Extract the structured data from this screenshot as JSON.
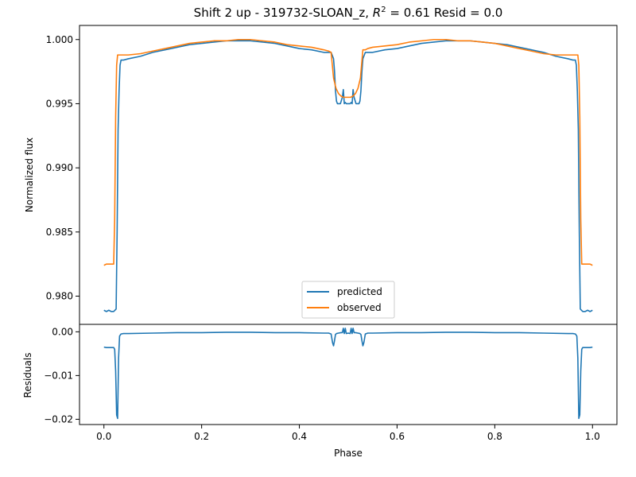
{
  "title_prefix": "Shift 2 up - 319732-SLOAN_z, ",
  "title_r2_symbol": "R",
  "title_r2_sup": "2",
  "title_suffix": " = 0.61 Resid = 0.0",
  "colors": {
    "predicted": "#1f77b4",
    "observed": "#ff7f0e",
    "axes": "#000000",
    "background": "#ffffff"
  },
  "chart_data": [
    {
      "type": "line",
      "panel": "top",
      "title": "Shift 2 up - 319732-SLOAN_z, R^2 = 0.61 Resid = 0.0",
      "xlabel": "",
      "ylabel": "Normalized flux",
      "xlim": [
        -0.05,
        1.05
      ],
      "ylim": [
        0.9778,
        1.0011
      ],
      "yticks": [
        0.98,
        0.985,
        0.99,
        0.995,
        1.0
      ],
      "yticklabels": [
        "0.980",
        "0.985",
        "0.990",
        "0.995",
        "1.000"
      ],
      "grid": false,
      "legend": {
        "position": "lower center",
        "entries": [
          "predicted",
          "observed"
        ]
      },
      "series": [
        {
          "name": "predicted",
          "color": "#1f77b4",
          "x": [
            0.0,
            0.005,
            0.01,
            0.015,
            0.02,
            0.025,
            0.027,
            0.029,
            0.031,
            0.033,
            0.035,
            0.04,
            0.05,
            0.075,
            0.1,
            0.125,
            0.15,
            0.175,
            0.2,
            0.225,
            0.25,
            0.275,
            0.3,
            0.325,
            0.35,
            0.375,
            0.4,
            0.425,
            0.45,
            0.46,
            0.465,
            0.47,
            0.472,
            0.474,
            0.476,
            0.478,
            0.48,
            0.484,
            0.488,
            0.49,
            0.492,
            0.494,
            0.496,
            0.5,
            0.504,
            0.506,
            0.508,
            0.51,
            0.512,
            0.516,
            0.52,
            0.522,
            0.524,
            0.526,
            0.528,
            0.53,
            0.535,
            0.54,
            0.55,
            0.575,
            0.6,
            0.625,
            0.65,
            0.675,
            0.7,
            0.725,
            0.75,
            0.775,
            0.8,
            0.825,
            0.85,
            0.875,
            0.9,
            0.925,
            0.95,
            0.96,
            0.965,
            0.967,
            0.969,
            0.971,
            0.973,
            0.975,
            0.98,
            0.985,
            0.99,
            0.995,
            1.0
          ],
          "y": [
            0.9789,
            0.9788,
            0.9789,
            0.9788,
            0.9788,
            0.979,
            0.985,
            0.993,
            0.996,
            0.998,
            0.9984,
            0.9984,
            0.9985,
            0.9987,
            0.999,
            0.9992,
            0.9994,
            0.9996,
            0.9997,
            0.9998,
            0.9999,
            0.9999,
            0.9999,
            0.9998,
            0.9997,
            0.9995,
            0.9993,
            0.9992,
            0.999,
            0.999,
            0.999,
            0.9985,
            0.9975,
            0.996,
            0.9952,
            0.995,
            0.995,
            0.995,
            0.9955,
            0.9961,
            0.995,
            0.9951,
            0.995,
            0.995,
            0.995,
            0.9951,
            0.995,
            0.9961,
            0.9955,
            0.995,
            0.995,
            0.995,
            0.9952,
            0.996,
            0.9975,
            0.9985,
            0.999,
            0.999,
            0.999,
            0.9992,
            0.9993,
            0.9995,
            0.9997,
            0.9998,
            0.9999,
            0.9999,
            0.9999,
            0.9998,
            0.9997,
            0.9996,
            0.9994,
            0.9992,
            0.999,
            0.9987,
            0.9985,
            0.9984,
            0.9984,
            0.998,
            0.996,
            0.993,
            0.985,
            0.979,
            0.9788,
            0.9788,
            0.9789,
            0.9788,
            0.9789
          ]
        },
        {
          "name": "observed",
          "color": "#ff7f0e",
          "x": [
            0.0,
            0.005,
            0.01,
            0.015,
            0.02,
            0.022,
            0.024,
            0.026,
            0.028,
            0.03,
            0.035,
            0.05,
            0.075,
            0.1,
            0.125,
            0.15,
            0.175,
            0.2,
            0.225,
            0.25,
            0.275,
            0.3,
            0.325,
            0.35,
            0.375,
            0.4,
            0.425,
            0.45,
            0.46,
            0.465,
            0.47,
            0.475,
            0.48,
            0.485,
            0.49,
            0.495,
            0.5,
            0.505,
            0.51,
            0.515,
            0.52,
            0.525,
            0.53,
            0.535,
            0.54,
            0.55,
            0.575,
            0.6,
            0.625,
            0.65,
            0.675,
            0.7,
            0.725,
            0.75,
            0.775,
            0.8,
            0.825,
            0.85,
            0.875,
            0.9,
            0.925,
            0.95,
            0.965,
            0.97,
            0.972,
            0.974,
            0.976,
            0.978,
            0.98,
            0.985,
            0.99,
            0.995,
            1.0
          ],
          "y": [
            0.9824,
            0.9825,
            0.9825,
            0.9825,
            0.9825,
            0.986,
            0.994,
            0.998,
            0.9988,
            0.9988,
            0.9988,
            0.9988,
            0.9989,
            0.9991,
            0.9993,
            0.9995,
            0.9997,
            0.9998,
            0.9999,
            0.9999,
            1.0,
            1.0,
            0.9999,
            0.9998,
            0.9996,
            0.9995,
            0.9994,
            0.9992,
            0.9991,
            0.999,
            0.997,
            0.9962,
            0.9958,
            0.9956,
            0.9955,
            0.9955,
            0.9955,
            0.9955,
            0.9956,
            0.9958,
            0.9962,
            0.997,
            0.9992,
            0.9992,
            0.9993,
            0.9994,
            0.9995,
            0.9996,
            0.9998,
            0.9999,
            1.0,
            1.0,
            0.9999,
            0.9999,
            0.9998,
            0.9997,
            0.9995,
            0.9993,
            0.9991,
            0.9989,
            0.9988,
            0.9988,
            0.9988,
            0.9988,
            0.998,
            0.994,
            0.986,
            0.9825,
            0.9825,
            0.9825,
            0.9825,
            0.9825,
            0.9824
          ]
        }
      ]
    },
    {
      "type": "line",
      "panel": "bottom",
      "title": "",
      "xlabel": "Phase",
      "ylabel": "Residuals",
      "xlim": [
        -0.05,
        1.05
      ],
      "ylim": [
        -0.0212,
        0.0017
      ],
      "xticks": [
        0.0,
        0.2,
        0.4,
        0.6,
        0.8,
        1.0
      ],
      "xticklabels": [
        "0.0",
        "0.2",
        "0.4",
        "0.6",
        "0.8",
        "1.0"
      ],
      "yticks": [
        -0.02,
        -0.01,
        0.0
      ],
      "yticklabels": [
        "−0.02",
        "−0.01",
        "0.00"
      ],
      "grid": false,
      "series": [
        {
          "name": "",
          "color": "#1f77b4",
          "x": [
            0.0,
            0.005,
            0.01,
            0.015,
            0.02,
            0.022,
            0.024,
            0.026,
            0.028,
            0.03,
            0.032,
            0.035,
            0.04,
            0.05,
            0.1,
            0.15,
            0.2,
            0.25,
            0.3,
            0.35,
            0.4,
            0.45,
            0.46,
            0.465,
            0.468,
            0.47,
            0.472,
            0.474,
            0.476,
            0.48,
            0.485,
            0.488,
            0.49,
            0.492,
            0.494,
            0.496,
            0.5,
            0.504,
            0.506,
            0.508,
            0.51,
            0.512,
            0.515,
            0.52,
            0.524,
            0.526,
            0.528,
            0.53,
            0.532,
            0.535,
            0.54,
            0.55,
            0.6,
            0.65,
            0.7,
            0.75,
            0.8,
            0.85,
            0.9,
            0.95,
            0.96,
            0.965,
            0.968,
            0.97,
            0.972,
            0.974,
            0.976,
            0.978,
            0.98,
            0.985,
            0.99,
            0.995,
            1.0
          ],
          "y": [
            -0.0035,
            -0.0036,
            -0.0036,
            -0.0036,
            -0.0036,
            -0.004,
            -0.009,
            -0.019,
            -0.0198,
            -0.006,
            -0.001,
            -0.0005,
            -0.0004,
            -0.0004,
            -0.0003,
            -0.0002,
            -0.0002,
            -0.0001,
            -0.0001,
            -0.0002,
            -0.0002,
            -0.0003,
            -0.0003,
            -0.0005,
            -0.0025,
            -0.0032,
            -0.002,
            -0.0006,
            -0.0004,
            -0.0003,
            -0.0002,
            -0.0002,
            0.0008,
            -0.0004,
            0.0008,
            -0.0004,
            -0.0003,
            -0.0004,
            0.0008,
            -0.0004,
            0.0008,
            -0.0002,
            -0.0002,
            -0.0003,
            -0.0004,
            -0.0006,
            -0.002,
            -0.0032,
            -0.0025,
            -0.0005,
            -0.0003,
            -0.0003,
            -0.0002,
            -0.0002,
            -0.0001,
            -0.0001,
            -0.0002,
            -0.0002,
            -0.0003,
            -0.0004,
            -0.0004,
            -0.0005,
            -0.001,
            -0.006,
            -0.0198,
            -0.019,
            -0.009,
            -0.004,
            -0.0036,
            -0.0036,
            -0.0036,
            -0.0036,
            -0.0035
          ]
        }
      ]
    }
  ]
}
